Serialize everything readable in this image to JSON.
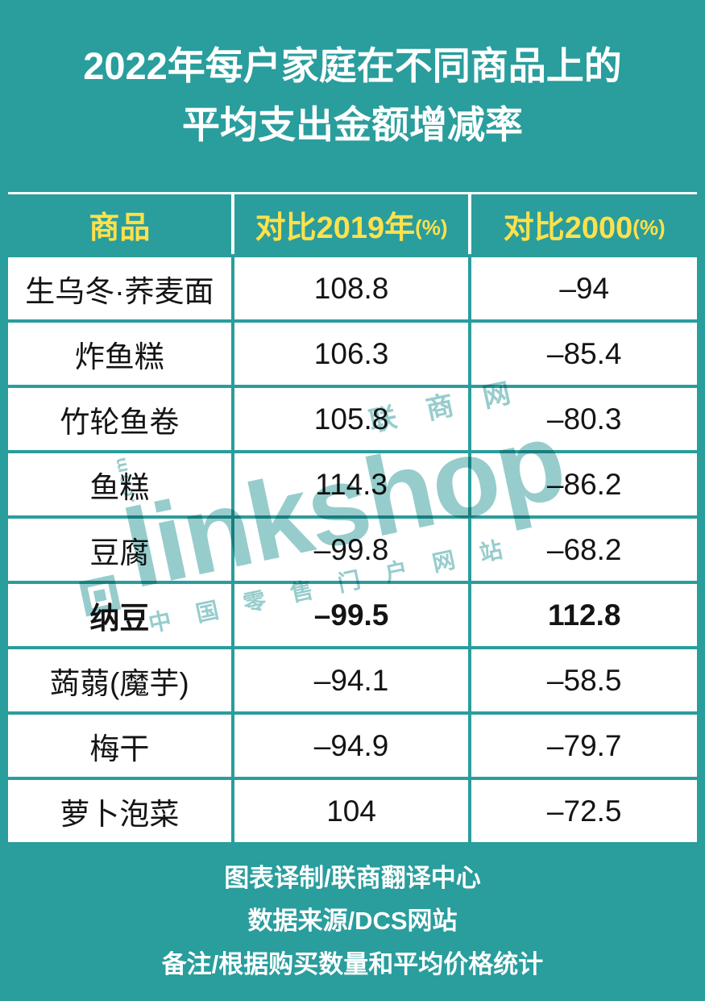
{
  "colors": {
    "background_teal": "#2A9D9D",
    "header_yellow": "#FFE14B",
    "cell_white": "#FFFFFF",
    "text_black": "#141414",
    "title_white": "#FFFFFF",
    "watermark_teal": "#2F9A9A"
  },
  "title": {
    "line1": "2022年每户家庭在不同商品上的",
    "line2": "平均支出金额增减率"
  },
  "table": {
    "headers": [
      {
        "label": "商品",
        "suffix": ""
      },
      {
        "label": "对比2019年",
        "suffix": "(%)"
      },
      {
        "label": "对比2000",
        "suffix": "(%)"
      }
    ],
    "rows": [
      {
        "name": "生乌冬·荞麦面",
        "vs2019": "108.8",
        "vs2000": "–94",
        "bold": false
      },
      {
        "name": "炸鱼糕",
        "vs2019": "106.3",
        "vs2000": "–85.4",
        "bold": false
      },
      {
        "name": "竹轮鱼卷",
        "vs2019": "105.8",
        "vs2000": "–80.3",
        "bold": false
      },
      {
        "name": "鱼糕",
        "vs2019": "114.3",
        "vs2000": "–86.2",
        "bold": false
      },
      {
        "name": "豆腐",
        "vs2019": "–99.8",
        "vs2000": "–68.2",
        "bold": false
      },
      {
        "name": "纳豆",
        "vs2019": "–99.5",
        "vs2000": "112.8",
        "bold": true
      },
      {
        "name": "蒟蒻(魔芋)",
        "vs2019": "–94.1",
        "vs2000": "–58.5",
        "bold": false
      },
      {
        "name": "梅干",
        "vs2019": "–94.9",
        "vs2000": "–79.7",
        "bold": false
      },
      {
        "name": "萝卜泡菜",
        "vs2019": "104",
        "vs2000": "–72.5",
        "bold": false
      }
    ]
  },
  "footer": {
    "lines": [
      "图表译制/联商翻译中心",
      "数据来源/DCS网站",
      "备注/根据购买数量和平均价格统计"
    ]
  },
  "watermark": {
    "top": "联商网",
    "main": "linkshop",
    "com": ".com",
    "bottom": "中国零售门户网站"
  },
  "chart_data": {
    "type": "table",
    "title": "2022年每户家庭在不同商品上的平均支出金额增减率",
    "columns": [
      "商品",
      "对比2019年(%)",
      "对比2000(%)"
    ],
    "rows": [
      [
        "生乌冬·荞麦面",
        108.8,
        -94
      ],
      [
        "炸鱼糕",
        106.3,
        -85.4
      ],
      [
        "竹轮鱼卷",
        105.8,
        -80.3
      ],
      [
        "鱼糕",
        114.3,
        -86.2
      ],
      [
        "豆腐",
        -99.8,
        -68.2
      ],
      [
        "纳豆",
        -99.5,
        112.8
      ],
      [
        "蒟蒻(魔芋)",
        -94.1,
        -58.5
      ],
      [
        "梅干",
        -94.9,
        -79.7
      ],
      [
        "萝卜泡菜",
        104,
        -72.5
      ]
    ],
    "emphasized_row": "纳豆",
    "notes": [
      "图表译制/联商翻译中心",
      "数据来源/DCS网站",
      "备注/根据购买数量和平均价格统计"
    ]
  }
}
